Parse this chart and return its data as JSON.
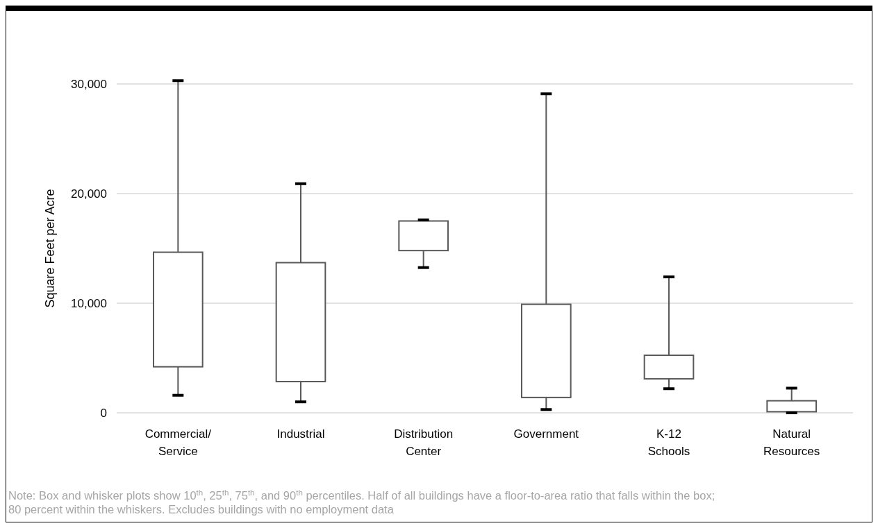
{
  "chart_data": {
    "type": "box",
    "ylabel": "Square Feet per Acre",
    "categories": [
      "Commercial/ Service",
      "Industrial",
      "Distribution Center",
      "Government",
      "K-12 Schools",
      "Natural Resources"
    ],
    "boxes": [
      {
        "low": 1600,
        "q1": 4200,
        "q3": 14650,
        "high": 30300
      },
      {
        "low": 1000,
        "q1": 2850,
        "q3": 13700,
        "high": 20900
      },
      {
        "low": 13250,
        "q1": 14800,
        "q3": 17500,
        "high": 17600
      },
      {
        "low": 300,
        "q1": 1400,
        "q3": 9900,
        "high": 29100
      },
      {
        "low": 2200,
        "q1": 3100,
        "q3": 5250,
        "high": 12400
      },
      {
        "low": 0,
        "q1": 100,
        "q3": 1100,
        "high": 2250
      }
    ],
    "color": "#595959",
    "ylim": [
      0,
      30000
    ],
    "yticks": [
      0,
      {
        "value": 10000,
        "label": "10,000"
      },
      {
        "value": 20000,
        "label": "20,000"
      },
      {
        "value": 30000,
        "label": "30,000"
      }
    ],
    "grid": "y",
    "annotations": [
      "Note: Box and whisker plots show 10$^{th}$, 25$^{th}$, 75$^{th}$, and 90$^{th}$ percentiles. Half of all buildings have a floor-to-area ratio that falls within the box; 80 percent within the whiskers. Excludes buildings with no employment data"
    ]
  }
}
